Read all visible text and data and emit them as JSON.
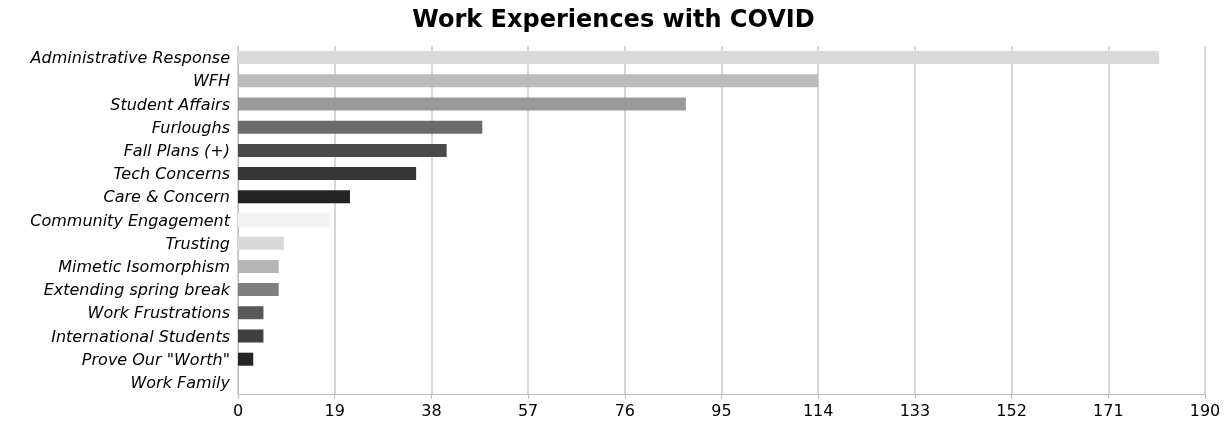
{
  "chart_data": {
    "type": "bar",
    "orientation": "horizontal",
    "title": "Work Experiences with COVID",
    "categories": [
      "Administrative Response",
      "WFH",
      "Student Affairs",
      "Furloughs",
      "Fall Plans (+)",
      "Tech Concerns",
      "Care & Concern",
      "Community Engagement",
      "Trusting",
      "Mimetic Isomorphism",
      "Extending spring break",
      "Work Frustrations",
      "International Students",
      "Prove Our \"Worth\"",
      "Work Family"
    ],
    "values": [
      181,
      114,
      88,
      48,
      41,
      35,
      22,
      18,
      9,
      8,
      8,
      5,
      5,
      3,
      0
    ],
    "colors": [
      "#d9d9d9",
      "#bbbbbb",
      "#999999",
      "#6b6b6b",
      "#4a4a4a",
      "#363636",
      "#232323",
      "#f2f2f2",
      "#d8d8d8",
      "#b5b5b5",
      "#7f7f7f",
      "#595959",
      "#3f3f3f",
      "#262626",
      "#0d0d0d"
    ],
    "xlim": [
      0,
      190
    ],
    "xticks": [
      0,
      19,
      38,
      57,
      76,
      95,
      114,
      133,
      152,
      171,
      190
    ],
    "grid": "x"
  }
}
